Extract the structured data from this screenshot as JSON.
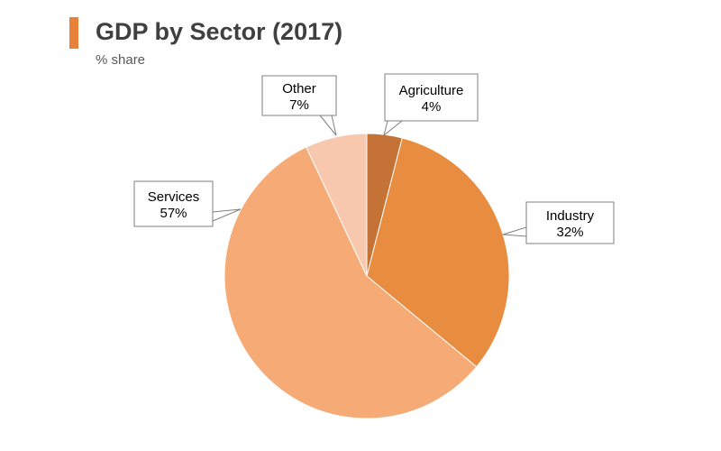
{
  "header": {
    "title": "GDP by Sector (2017)",
    "subtitle": "% share",
    "accent_color": "#e8823a"
  },
  "chart_data": {
    "type": "pie",
    "title": "GDP by Sector (2017)",
    "subtitle": "% share",
    "unit": "%",
    "start_angle_deg": 0,
    "direction": "clockwise",
    "slices": [
      {
        "label": "Agriculture",
        "value": 4,
        "value_label": "4%",
        "color": "#c57236"
      },
      {
        "label": "Industry",
        "value": 32,
        "value_label": "32%",
        "color": "#e88c3f"
      },
      {
        "label": "Services",
        "value": 57,
        "value_label": "57%",
        "color": "#f6ab77"
      },
      {
        "label": "Other",
        "value": 7,
        "value_label": "7%",
        "color": "#f8c8ae"
      }
    ],
    "legend": "none",
    "data_labels": "callouts"
  }
}
